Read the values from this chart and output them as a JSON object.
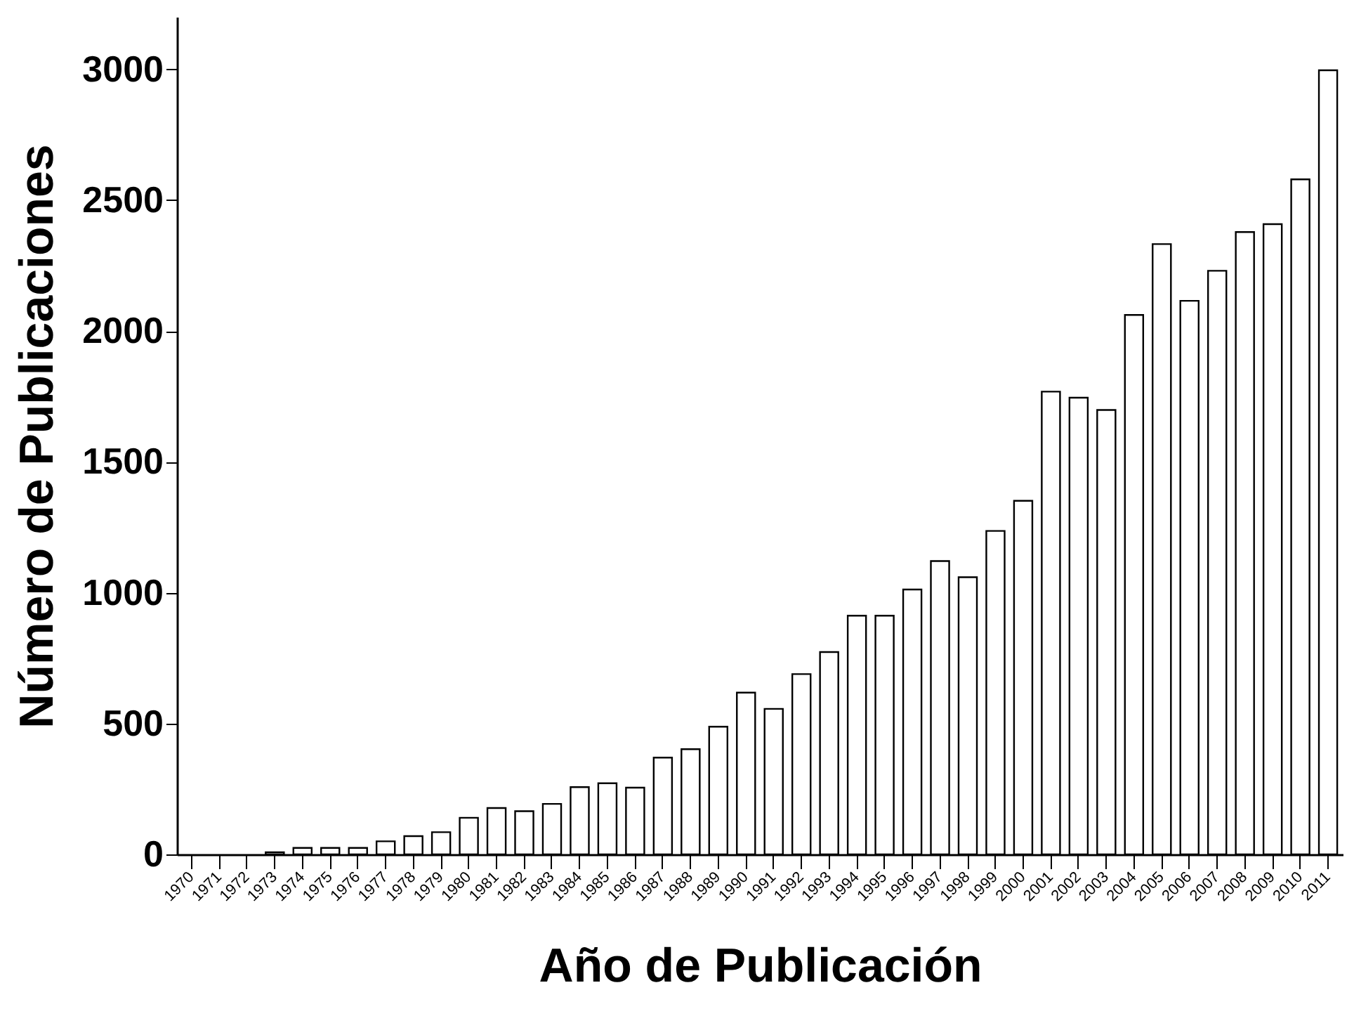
{
  "chart_data": {
    "type": "bar",
    "xlabel": "Año de Publicación",
    "ylabel": "Número de Publicaciones",
    "categories": [
      "1970",
      "1971",
      "1972",
      "1973",
      "1974",
      "1975",
      "1976",
      "1977",
      "1978",
      "1979",
      "1980",
      "1981",
      "1982",
      "1983",
      "1984",
      "1985",
      "1986",
      "1987",
      "1988",
      "1989",
      "1990",
      "1991",
      "1992",
      "1993",
      "1994",
      "1995",
      "1996",
      "1997",
      "1998",
      "1999",
      "2000",
      "2001",
      "2002",
      "2003",
      "2004",
      "2005",
      "2006",
      "2007",
      "2008",
      "2009",
      "2010",
      "2011"
    ],
    "values": [
      0,
      0,
      0,
      8,
      25,
      25,
      25,
      50,
      70,
      85,
      140,
      177,
      165,
      193,
      257,
      272,
      255,
      370,
      402,
      488,
      618,
      556,
      689,
      773,
      912,
      912,
      1012,
      1121,
      1059,
      1236,
      1351,
      1768,
      1745,
      1698,
      2061,
      2332,
      2115,
      2230,
      2378,
      2408,
      2579,
      2996
    ],
    "color": "#ffffff",
    "ylim": [
      0,
      3200
    ],
    "yticks": [
      0,
      500,
      1000,
      1500,
      2000,
      2500,
      3000
    ],
    "grid": false
  }
}
